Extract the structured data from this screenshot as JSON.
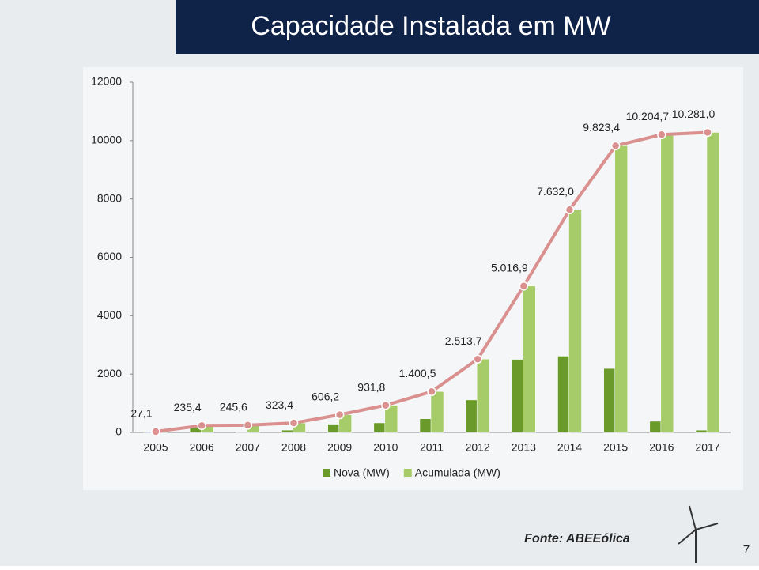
{
  "title": "Capacidade Instalada em MW",
  "chart_data": {
    "type": "bar",
    "categories": [
      "2005",
      "2006",
      "2007",
      "2008",
      "2009",
      "2010",
      "2011",
      "2012",
      "2013",
      "2014",
      "2015",
      "2016",
      "2017"
    ],
    "series": [
      {
        "name": "Nova (MW)",
        "color": "#6a9a2a",
        "values": [
          27,
          208,
          10,
          78,
          283,
          326,
          469,
          1113,
          2503,
          2615,
          2191,
          381,
          77
        ]
      },
      {
        "name": "Acumulada (MW)",
        "color": "#a6cc6a",
        "line_color": "#d9908f",
        "values": [
          27.1,
          235.4,
          245.6,
          323.4,
          606.2,
          931.8,
          1400.5,
          2513.7,
          5016.9,
          7632.0,
          9823.4,
          10204.7,
          10281.0
        ],
        "value_labels": [
          "27,1",
          "235,4",
          "245,6",
          "323,4",
          "606,2",
          "931,8",
          "1.400,5",
          "2.513,7",
          "5.016,9",
          "7.632,0",
          "9.823,4",
          "10.204,7",
          "10.281,0"
        ]
      }
    ],
    "ylim": [
      0,
      12000
    ],
    "yticks": [
      0,
      2000,
      4000,
      6000,
      8000,
      10000,
      12000
    ],
    "legend": "bottom"
  },
  "footer": {
    "source": "Fonte: ABEEólica",
    "page": "7"
  }
}
